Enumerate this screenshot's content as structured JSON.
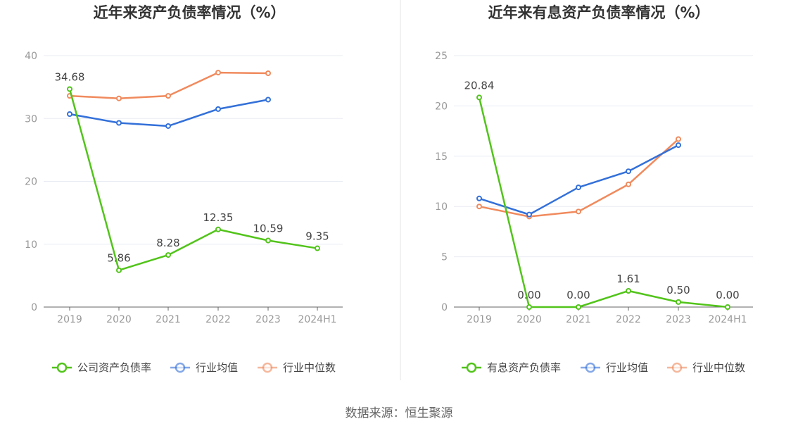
{
  "source_text": "数据来源：恒生聚源",
  "chart_data": [
    {
      "type": "line",
      "title": "近年来资产负债率情况（%）",
      "categories": [
        "2019",
        "2020",
        "2021",
        "2022",
        "2023",
        "2024H1"
      ],
      "ylim": [
        0,
        40
      ],
      "yticks": [
        "0",
        "10",
        "20",
        "30",
        "40"
      ],
      "grid": true,
      "legend_position": "bottom",
      "series": [
        {
          "name": "公司资产负债率",
          "color": "#52c41a",
          "values": [
            34.68,
            5.86,
            8.28,
            12.35,
            10.59,
            9.35
          ],
          "labels": [
            "34.68",
            "5.86",
            "8.28",
            "12.35",
            "10.59",
            "9.35"
          ]
        },
        {
          "name": "行业均值",
          "color": "#3370d9",
          "values": [
            30.7,
            29.3,
            28.8,
            31.5,
            33.0,
            null
          ]
        },
        {
          "name": "行业中位数",
          "color": "#f08a5d",
          "values": [
            33.6,
            33.2,
            33.6,
            37.3,
            37.2,
            null
          ]
        }
      ]
    },
    {
      "type": "line",
      "title": "近年来有息资产负债率情况（%）",
      "categories": [
        "2019",
        "2020",
        "2021",
        "2022",
        "2023",
        "2024H1"
      ],
      "ylim": [
        0,
        25
      ],
      "yticks": [
        "0",
        "5",
        "10",
        "15",
        "20",
        "25"
      ],
      "grid": true,
      "legend_position": "bottom",
      "series": [
        {
          "name": "有息资产负债率",
          "color": "#52c41a",
          "values": [
            20.84,
            0.0,
            0.0,
            1.61,
            0.5,
            0.0
          ],
          "labels": [
            "20.84",
            "0.00",
            "0.00",
            "1.61",
            "0.50",
            "0.00"
          ]
        },
        {
          "name": "行业均值",
          "color": "#3370d9",
          "values": [
            10.8,
            9.2,
            11.9,
            13.5,
            16.1,
            null
          ]
        },
        {
          "name": "行业中位数",
          "color": "#f08a5d",
          "values": [
            10.0,
            9.0,
            9.5,
            12.2,
            16.7,
            null
          ]
        }
      ]
    }
  ]
}
